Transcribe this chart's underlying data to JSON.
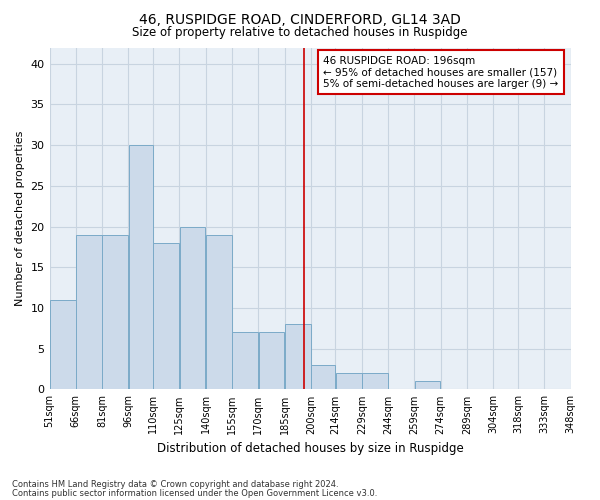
{
  "title1": "46, RUSPIDGE ROAD, CINDERFORD, GL14 3AD",
  "title2": "Size of property relative to detached houses in Ruspidge",
  "xlabel": "Distribution of detached houses by size in Ruspidge",
  "ylabel": "Number of detached properties",
  "bar_left_edges": [
    51,
    66,
    81,
    96,
    110,
    125,
    140,
    155,
    170,
    185,
    200,
    214,
    229,
    244,
    259,
    274,
    289,
    304,
    318,
    333
  ],
  "bar_widths": [
    15,
    15,
    15,
    14,
    15,
    15,
    15,
    15,
    15,
    15,
    14,
    15,
    15,
    15,
    15,
    15,
    15,
    14,
    15,
    15
  ],
  "bar_heights": [
    11,
    19,
    19,
    30,
    18,
    20,
    19,
    7,
    7,
    8,
    3,
    2,
    2,
    0,
    1,
    0,
    0,
    0,
    0,
    0
  ],
  "bar_color": "#ccdaea",
  "bar_edge_color": "#7baac8",
  "vline_x": 196,
  "vline_color": "#cc0000",
  "ylim": [
    0,
    42
  ],
  "yticks": [
    0,
    5,
    10,
    15,
    20,
    25,
    30,
    35,
    40
  ],
  "tick_labels": [
    "51sqm",
    "66sqm",
    "81sqm",
    "96sqm",
    "110sqm",
    "125sqm",
    "140sqm",
    "155sqm",
    "170sqm",
    "185sqm",
    "200sqm",
    "214sqm",
    "229sqm",
    "244sqm",
    "259sqm",
    "274sqm",
    "289sqm",
    "304sqm",
    "318sqm",
    "333sqm",
    "348sqm"
  ],
  "annotation_text": "46 RUSPIDGE ROAD: 196sqm\n← 95% of detached houses are smaller (157)\n5% of semi-detached houses are larger (9) →",
  "annotation_box_color": "#ffffff",
  "annotation_box_edge": "#cc0000",
  "grid_color": "#c8d4e0",
  "bg_color": "#e8eff6",
  "fig_bg_color": "#ffffff",
  "footer1": "Contains HM Land Registry data © Crown copyright and database right 2024.",
  "footer2": "Contains public sector information licensed under the Open Government Licence v3.0."
}
